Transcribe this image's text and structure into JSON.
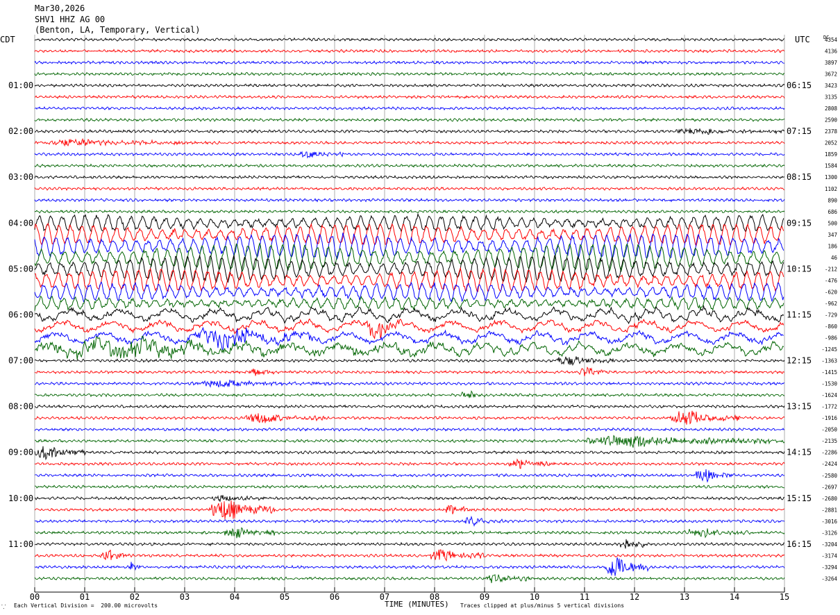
{
  "header": {
    "date": "Mar30,2026",
    "station": "SHV1 HHZ AG 00",
    "location": "(Benton, LA, Temporary, Vertical)"
  },
  "left_tz": "CDT",
  "right_tz": "UTC",
  "right_corner": "DC",
  "footer": {
    "scale_note": "Each Vertical Division =  200.00 microvolts",
    "x_title": "TIME (MINUTES)",
    "clip_note": "Traces clipped at plus/minus 5 vertical divisions"
  },
  "chart_data": {
    "type": "line",
    "xlabel": "TIME (MINUTES)",
    "xlim": [
      0,
      15
    ],
    "x_ticks": [
      "00",
      "01",
      "02",
      "03",
      "04",
      "05",
      "06",
      "07",
      "08",
      "09",
      "10",
      "11",
      "12",
      "13",
      "14",
      "15"
    ],
    "trace_count": 48,
    "minutes_per_trace": 15,
    "trace_colors": [
      "#000000",
      "#ff0000",
      "#0000ff",
      "#006400"
    ],
    "left_hour_labels": [
      "01:00",
      "02:00",
      "03:00",
      "04:00",
      "05:00",
      "06:00",
      "07:00",
      "08:00",
      "09:00",
      "10:00",
      "11:00"
    ],
    "right_hour_labels": [
      "06:15",
      "07:15",
      "08:15",
      "09:15",
      "10:15",
      "11:15",
      "12:15",
      "13:15",
      "14:15",
      "15:15",
      "16:15"
    ],
    "label_every_traces": 4,
    "first_label_trace": 4,
    "dc_offsets": [
      "4354",
      "4136",
      "3897",
      "3672",
      "3423",
      "3135",
      "2808",
      "2590",
      "2378",
      "2052",
      "1859",
      "1584",
      "1300",
      "1102",
      "890",
      "686",
      "500",
      "347",
      "186",
      "46",
      "-212",
      "-476",
      "-620",
      "-962",
      "-729",
      "-860",
      "-986",
      "-1245",
      "-1363",
      "-1415",
      "-1530",
      "-1624",
      "-1772",
      "-1916",
      "-2050",
      "-2135",
      "-2286",
      "-2424",
      "-2580",
      "-2697",
      "-2680",
      "-2881",
      "-3016",
      "-3126",
      "-3204",
      "-3174",
      "-3294",
      "-3264"
    ],
    "events": [
      {
        "trace": 9,
        "start_min": 0.0,
        "end_min": 3.0,
        "amp": 0.55
      },
      {
        "trace": 10,
        "start_min": 5.3,
        "end_min": 6.2,
        "amp": 0.5
      },
      {
        "trace": 8,
        "start_min": 12.8,
        "end_min": 15.0,
        "amp": 0.45
      },
      {
        "trace": 25,
        "start_min": 6.6,
        "end_min": 7.4,
        "amp": 1.4
      },
      {
        "trace": 26,
        "start_min": 3.2,
        "end_min": 5.6,
        "amp": 1.3
      },
      {
        "trace": 27,
        "start_min": 0.0,
        "end_min": 8.0,
        "amp": 1.0
      },
      {
        "trace": 28,
        "start_min": 10.4,
        "end_min": 11.6,
        "amp": 0.8
      },
      {
        "trace": 29,
        "start_min": 10.9,
        "end_min": 11.4,
        "amp": 0.9
      },
      {
        "trace": 29,
        "start_min": 4.3,
        "end_min": 4.8,
        "amp": 0.7
      },
      {
        "trace": 30,
        "start_min": 3.1,
        "end_min": 5.9,
        "amp": 0.5
      },
      {
        "trace": 31,
        "start_min": 8.5,
        "end_min": 9.2,
        "amp": 0.5
      },
      {
        "trace": 33,
        "start_min": 4.2,
        "end_min": 5.8,
        "amp": 0.8
      },
      {
        "trace": 33,
        "start_min": 12.7,
        "end_min": 14.1,
        "amp": 1.1
      },
      {
        "trace": 35,
        "start_min": 11.0,
        "end_min": 15.0,
        "amp": 0.9
      },
      {
        "trace": 36,
        "start_min": 0.0,
        "end_min": 1.0,
        "amp": 1.0
      },
      {
        "trace": 37,
        "start_min": 9.5,
        "end_min": 10.4,
        "amp": 0.7
      },
      {
        "trace": 38,
        "start_min": 13.2,
        "end_min": 14.0,
        "amp": 1.0
      },
      {
        "trace": 40,
        "start_min": 3.5,
        "end_min": 4.6,
        "amp": 0.5
      },
      {
        "trace": 41,
        "start_min": 3.5,
        "end_min": 4.8,
        "amp": 1.6
      },
      {
        "trace": 41,
        "start_min": 8.2,
        "end_min": 8.7,
        "amp": 0.9
      },
      {
        "trace": 42,
        "start_min": 8.6,
        "end_min": 9.4,
        "amp": 0.7
      },
      {
        "trace": 43,
        "start_min": 3.8,
        "end_min": 4.8,
        "amp": 0.9
      },
      {
        "trace": 43,
        "start_min": 13.0,
        "end_min": 14.4,
        "amp": 0.6
      },
      {
        "trace": 44,
        "start_min": 11.7,
        "end_min": 12.2,
        "amp": 1.2
      },
      {
        "trace": 45,
        "start_min": 1.3,
        "end_min": 1.9,
        "amp": 1.0
      },
      {
        "trace": 45,
        "start_min": 7.9,
        "end_min": 9.0,
        "amp": 0.9
      },
      {
        "trace": 46,
        "start_min": 11.4,
        "end_min": 12.3,
        "amp": 1.8
      },
      {
        "trace": 46,
        "start_min": 1.9,
        "end_min": 2.1,
        "amp": 0.9
      },
      {
        "trace": 47,
        "start_min": 9.0,
        "end_min": 10.0,
        "amp": 0.6
      }
    ],
    "microseism_traces": [
      16,
      27
    ],
    "scale_microvolts_per_division": 200.0
  }
}
